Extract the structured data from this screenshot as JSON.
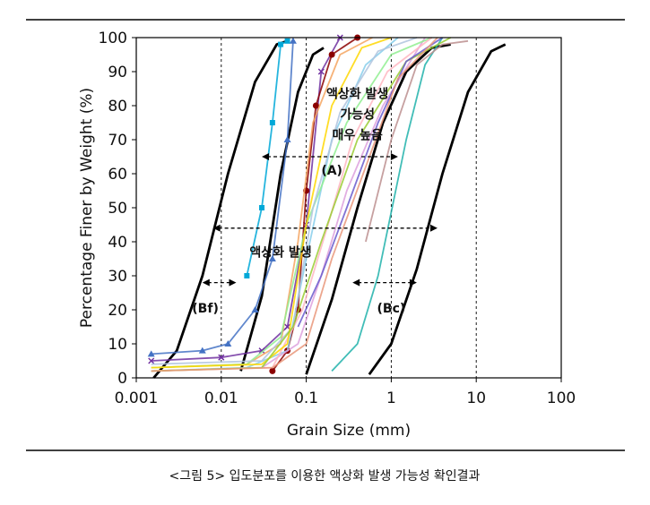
{
  "chart_data": {
    "type": "line",
    "title": "",
    "xlabel": "Grain Size (mm)",
    "ylabel": "Percentage Finer by Weight (%)",
    "x_scale": "log",
    "xlim": [
      0.001,
      100
    ],
    "ylim": [
      0,
      100
    ],
    "x_ticks": [
      0.001,
      0.01,
      0.1,
      1,
      10,
      100
    ],
    "x_tick_labels": [
      "0.001",
      "0.01",
      "0.1",
      "1",
      "10",
      "100"
    ],
    "y_ticks": [
      0,
      10,
      20,
      30,
      40,
      50,
      60,
      70,
      80,
      90,
      100
    ],
    "y_tick_labels": [
      "0",
      "10",
      "20",
      "30",
      "40",
      "50",
      "60",
      "70",
      "80",
      "90",
      "100"
    ],
    "grid": false,
    "legend": "none",
    "reference_lines_x": [
      0.01,
      0.1,
      1,
      10
    ],
    "boundaries": [
      {
        "color": "#000000",
        "x": [
          0.0016,
          0.003,
          0.006,
          0.012,
          0.025,
          0.045,
          0.06
        ],
        "y": [
          0,
          8,
          30,
          60,
          87,
          98,
          99
        ]
      },
      {
        "color": "#000000",
        "x": [
          0.017,
          0.03,
          0.05,
          0.08,
          0.12,
          0.16
        ],
        "y": [
          2,
          24,
          60,
          84,
          95,
          97
        ]
      },
      {
        "color": "#000000",
        "x": [
          0.1,
          0.2,
          0.4,
          0.8,
          1.5,
          3,
          5
        ],
        "y": [
          1,
          23,
          50,
          75,
          90,
          97,
          98
        ]
      },
      {
        "color": "#000000",
        "x": [
          0.55,
          1,
          2,
          4,
          8,
          15,
          22
        ],
        "y": [
          1,
          10,
          32,
          60,
          84,
          96,
          98
        ]
      }
    ],
    "series": [
      {
        "color": "#00a8d8",
        "marker": "square",
        "x": [
          0.02,
          0.03,
          0.04,
          0.05,
          0.06
        ],
        "y": [
          30,
          50,
          75,
          98,
          99
        ]
      },
      {
        "color": "#4472c4",
        "marker": "triangle",
        "x": [
          0.0015,
          0.006,
          0.012,
          0.025,
          0.04,
          0.06,
          0.07
        ],
        "y": [
          7,
          8,
          10,
          20,
          35,
          70,
          99
        ]
      },
      {
        "color": "#7030a0",
        "marker": "x",
        "x": [
          0.0015,
          0.01,
          0.03,
          0.06,
          0.1,
          0.15,
          0.25
        ],
        "y": [
          5,
          6,
          8,
          15,
          45,
          90,
          100
        ]
      },
      {
        "color": "#8b0000",
        "marker": "circle",
        "x": [
          0.04,
          0.06,
          0.08,
          0.1,
          0.13,
          0.2,
          0.4
        ],
        "y": [
          2,
          8,
          20,
          55,
          80,
          95,
          100
        ]
      },
      {
        "color": "#f4a460",
        "marker": "none",
        "x": [
          0.0015,
          0.02,
          0.05,
          0.08,
          0.12,
          0.25,
          0.6
        ],
        "y": [
          3,
          4,
          10,
          40,
          75,
          95,
          100
        ]
      },
      {
        "color": "#87ceeb",
        "marker": "none",
        "x": [
          0.0015,
          0.02,
          0.06,
          0.1,
          0.2,
          0.5,
          1.2
        ],
        "y": [
          2,
          3,
          8,
          35,
          70,
          92,
          100
        ]
      },
      {
        "color": "#dda0dd",
        "marker": "none",
        "x": [
          0.0015,
          0.03,
          0.08,
          0.15,
          0.3,
          0.8,
          2.5
        ],
        "y": [
          2,
          3,
          10,
          30,
          55,
          80,
          100
        ]
      },
      {
        "color": "#90ee90",
        "marker": "none",
        "x": [
          0.0015,
          0.02,
          0.05,
          0.1,
          0.3,
          1,
          3
        ],
        "y": [
          3,
          4,
          12,
          45,
          75,
          95,
          100
        ]
      },
      {
        "color": "#20b2aa",
        "marker": "none",
        "x": [
          0.2,
          0.4,
          0.7,
          1.5,
          2.5,
          4
        ],
        "y": [
          2,
          10,
          30,
          70,
          92,
          100
        ]
      },
      {
        "color": "#b0c4de",
        "marker": "none",
        "x": [
          0.0015,
          0.03,
          0.07,
          0.12,
          0.25,
          0.7,
          2
        ],
        "y": [
          4,
          5,
          15,
          50,
          78,
          96,
          100
        ]
      },
      {
        "color": "#ffb6c1",
        "marker": "none",
        "x": [
          0.0015,
          0.04,
          0.09,
          0.18,
          0.35,
          0.9,
          3
        ],
        "y": [
          2,
          3,
          20,
          45,
          70,
          90,
          100
        ]
      },
      {
        "color": "#bc8f8f",
        "marker": "none",
        "x": [
          0.5,
          1,
          2,
          4,
          8
        ],
        "y": [
          40,
          70,
          92,
          98,
          99
        ]
      },
      {
        "color": "#ffd700",
        "marker": "none",
        "x": [
          0.0015,
          0.03,
          0.06,
          0.1,
          0.2,
          0.45,
          1
        ],
        "y": [
          3,
          4,
          10,
          45,
          80,
          97,
          100
        ]
      },
      {
        "color": "#9acd32",
        "marker": "none",
        "x": [
          0.0015,
          0.03,
          0.07,
          0.15,
          0.4,
          1.5,
          5
        ],
        "y": [
          2,
          3,
          15,
          40,
          70,
          93,
          100
        ]
      },
      {
        "color": "#6a5acd",
        "marker": "none",
        "x": [
          0.08,
          0.15,
          0.3,
          0.7,
          1.5,
          4
        ],
        "y": [
          15,
          30,
          50,
          75,
          93,
          100
        ]
      },
      {
        "color": "#e9967a",
        "marker": "none",
        "x": [
          0.0015,
          0.04,
          0.1,
          0.2,
          0.5,
          1.2,
          3.5
        ],
        "y": [
          2,
          3,
          10,
          35,
          62,
          88,
          100
        ]
      }
    ],
    "annotations": [
      {
        "text": "액상화 발생",
        "x": 0.4,
        "y": 83.5
      },
      {
        "text": "가능성",
        "x": 0.4,
        "y": 77.5
      },
      {
        "text": "매우 높음",
        "x": 0.4,
        "y": 71.5
      },
      {
        "text": "(A)",
        "x": 0.2,
        "y": 61
      },
      {
        "text": "액상화 발생",
        "x": 0.05,
        "y": 37
      },
      {
        "text": "(Bf)",
        "x": 0.0065,
        "y": 20.5
      },
      {
        "text": "(Bc)",
        "x": 1.0,
        "y": 20.5
      }
    ],
    "ranges": [
      {
        "label": "(A)",
        "x1": 0.03,
        "x2": 1.2,
        "y": 65
      },
      {
        "label": "액상화 발생",
        "x1": 0.008,
        "x2": 3.5,
        "y": 44
      },
      {
        "label": "(Bf)",
        "x1": 0.006,
        "x2": 0.015,
        "y": 28
      },
      {
        "label": "(Bc)",
        "x1": 0.35,
        "x2": 2.0,
        "y": 28
      }
    ]
  },
  "caption": "<그림 5> 입도분포를 이용한 액상화 발생 가능성 확인결과"
}
